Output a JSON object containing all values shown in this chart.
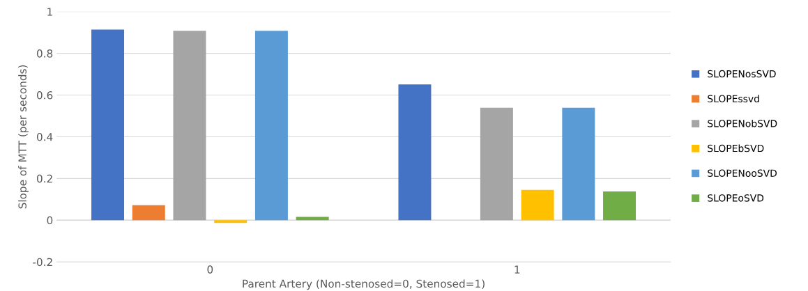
{
  "chart_data": {
    "type": "bar",
    "xlabel": "Parent Artery (Non-stenosed=0, Stenosed=1)",
    "ylabel": "Slope of MTT (per seconds)",
    "categories": [
      "0",
      "1"
    ],
    "series": [
      {
        "name": "SLOPENosSVD",
        "color": "#4472c4",
        "values": [
          0.914,
          0.651
        ]
      },
      {
        "name": "SLOPEssvd",
        "color": "#ed7d31",
        "values": [
          0.072,
          0
        ]
      },
      {
        "name": "SLOPENobSVD",
        "color": "#a5a5a5",
        "values": [
          0.908,
          0.539
        ]
      },
      {
        "name": "SLOPEbSVD",
        "color": "#ffc000",
        "values": [
          -0.013,
          0.145
        ]
      },
      {
        "name": "SLOPENooSVD",
        "color": "#5b9bd5",
        "values": [
          0.908,
          0.539
        ]
      },
      {
        "name": "SLOPEoSVD",
        "color": "#70ad47",
        "values": [
          0.016,
          0.138
        ]
      }
    ],
    "ylim": [
      -0.2,
      1
    ],
    "yticks": [
      -0.2,
      0,
      0.2,
      0.4,
      0.6,
      0.8,
      1
    ],
    "grid": "y",
    "legend": "right"
  }
}
